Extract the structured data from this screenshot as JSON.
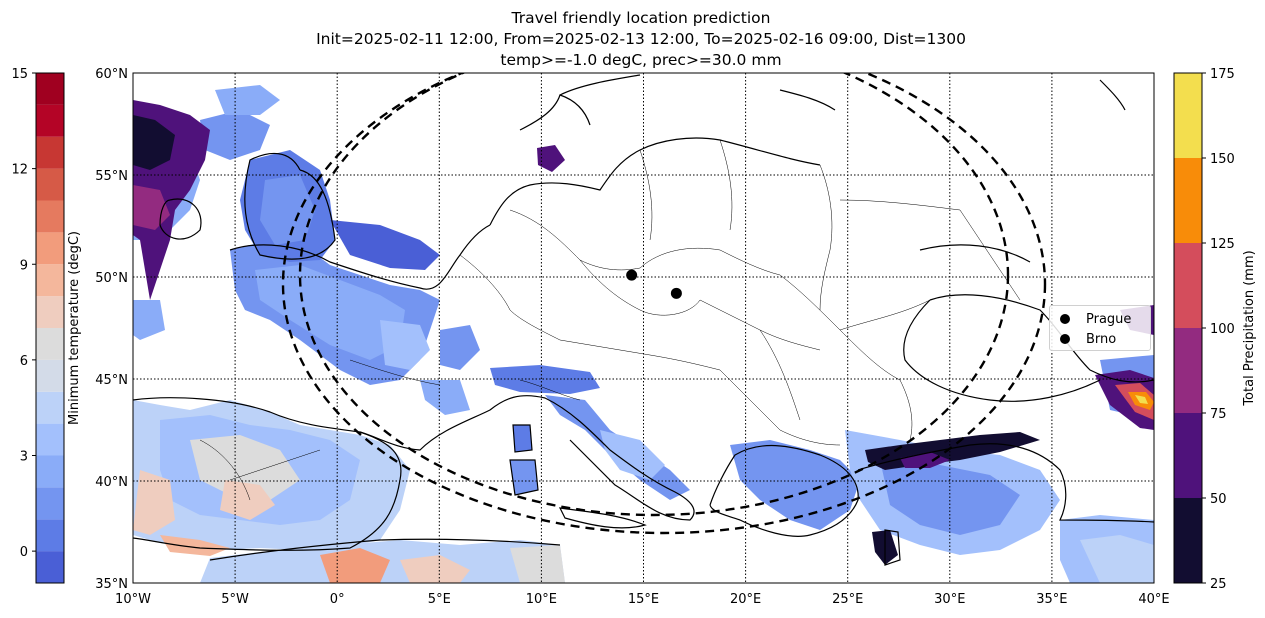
{
  "title": {
    "line1": "Travel friendly location prediction",
    "line2": "Init=2025-02-11 12:00, From=2025-02-13 12:00, To=2025-02-16 09:00, Dist=1300",
    "line3": "temp>=-1.0 degC, prec>=30.0 mm"
  },
  "map": {
    "lon_range": [
      -10,
      40
    ],
    "lat_range": [
      35,
      60
    ],
    "lon_ticks": [
      "10°W",
      "5°W",
      "0°",
      "5°E",
      "10°E",
      "15°E",
      "20°E",
      "25°E",
      "30°E",
      "35°E",
      "40°E"
    ],
    "lat_ticks": [
      "35°N",
      "40°N",
      "45°N",
      "50°N",
      "55°N",
      "60°N"
    ],
    "gridlines": "dotted",
    "cities": [
      {
        "name": "Prague",
        "lon": 14.42,
        "lat": 50.09
      },
      {
        "name": "Brno",
        "lon": 16.61,
        "lat": 49.2
      }
    ],
    "legend_position": "right"
  },
  "temp_colorbar": {
    "label": "Minimum temperature (degC)",
    "ticks": [
      "0",
      "3",
      "6",
      "9",
      "12",
      "15"
    ],
    "levels": [
      -1,
      0,
      1,
      2,
      3,
      4,
      5,
      6,
      7,
      8,
      9,
      10,
      11,
      12,
      13,
      14,
      15
    ],
    "colors": [
      "#4a5fd6",
      "#5d7ce6",
      "#7495f0",
      "#8aacf8",
      "#a3c0fc",
      "#bcd2f8",
      "#d3dbe8",
      "#dcdcdc",
      "#efcdbf",
      "#f4b79c",
      "#f29c7c",
      "#e57a5f",
      "#d65a47",
      "#c73733",
      "#b40426",
      "#a00020"
    ]
  },
  "precip_colorbar": {
    "label": "Total Precipitation (mm)",
    "ticks": [
      "25",
      "50",
      "75",
      "100",
      "125",
      "150",
      "175"
    ],
    "colors": [
      "#120d31",
      "#4f127b",
      "#932b80",
      "#d44d5c",
      "#f88c09",
      "#f3de4e"
    ]
  }
}
